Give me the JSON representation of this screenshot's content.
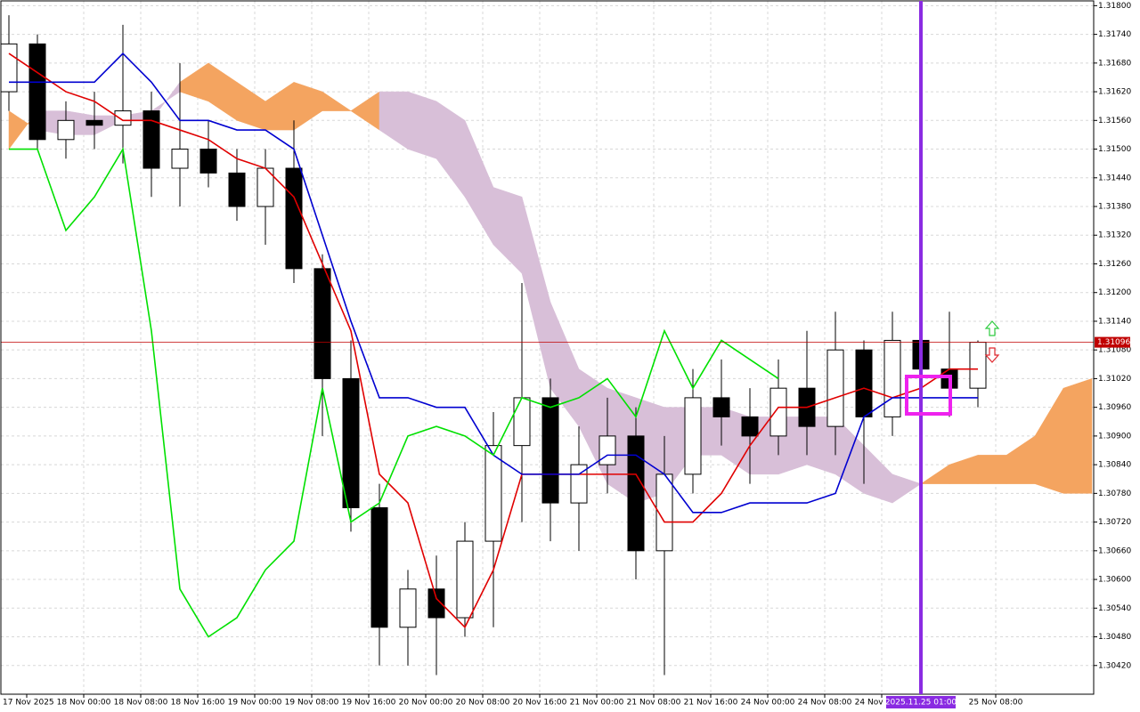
{
  "chart_data": {
    "type": "candlestick",
    "ylim": [
      1.3036,
      1.3181
    ],
    "yticks": [
      {
        "value": 1.318,
        "label": "1.31800"
      },
      {
        "value": 1.3174,
        "label": "1.31740"
      },
      {
        "value": 1.3168,
        "label": "1.31680"
      },
      {
        "value": 1.3162,
        "label": "1.31620"
      },
      {
        "value": 1.3156,
        "label": "1.31560"
      },
      {
        "value": 1.315,
        "label": "1.31500"
      },
      {
        "value": 1.3144,
        "label": "1.31440"
      },
      {
        "value": 1.3138,
        "label": "1.31380"
      },
      {
        "value": 1.3132,
        "label": "1.31320"
      },
      {
        "value": 1.3126,
        "label": "1.31260"
      },
      {
        "value": 1.312,
        "label": "1.31200"
      },
      {
        "value": 1.3114,
        "label": "1.31140"
      },
      {
        "value": 1.3108,
        "label": "1.31080"
      },
      {
        "value": 1.3102,
        "label": "1.31020"
      },
      {
        "value": 1.3096,
        "label": "1.30960"
      },
      {
        "value": 1.309,
        "label": "1.30900"
      },
      {
        "value": 1.3084,
        "label": "1.30840"
      },
      {
        "value": 1.3078,
        "label": "1.30780"
      },
      {
        "value": 1.3072,
        "label": "1.30720"
      },
      {
        "value": 1.3066,
        "label": "1.30660"
      },
      {
        "value": 1.306,
        "label": "1.30600"
      },
      {
        "value": 1.3054,
        "label": "1.30540"
      },
      {
        "value": 1.3048,
        "label": "1.30480"
      },
      {
        "value": 1.3042,
        "label": "1.30420"
      }
    ],
    "grid": true,
    "xlabels": [
      "17 Nov 2025",
      "18 Nov 00:00",
      "18 Nov 08:00",
      "18 Nov 16:00",
      "19 Nov 00:00",
      "19 Nov 08:00",
      "19 Nov 16:00",
      "20 Nov 00:00",
      "20 Nov 08:00",
      "20 Nov 16:00",
      "21 Nov 00:00",
      "21 Nov 08:00",
      "21 Nov 16:00",
      "24 Nov 00:00",
      "24 Nov 08:00",
      "24 Nov 16:00",
      null,
      "25 Nov 08:00"
    ],
    "up_color": "#ffffff",
    "down_color": "#000000",
    "open": [
      1.3162,
      1.3172,
      1.3152,
      1.3156,
      1.3155,
      1.3158,
      1.3146,
      1.315,
      1.3145,
      1.3138,
      1.3146,
      1.3125,
      1.3102,
      1.3075,
      1.305,
      1.3058,
      1.3052,
      1.3068,
      1.3088,
      1.3098,
      1.3076,
      1.3084,
      1.309,
      1.3066,
      1.3082,
      1.3098,
      1.3094,
      1.309,
      1.31,
      1.3092,
      1.3108,
      1.3094,
      1.311,
      1.3104,
      1.31
    ],
    "high": [
      1.3178,
      1.3174,
      1.316,
      1.3162,
      1.3176,
      1.3162,
      1.3168,
      1.3156,
      1.315,
      1.315,
      1.3156,
      1.3128,
      1.311,
      1.308,
      1.3062,
      1.3065,
      1.3072,
      1.3095,
      1.3122,
      1.3102,
      1.3092,
      1.3098,
      1.3096,
      1.309,
      1.3104,
      1.3106,
      1.31,
      1.3106,
      1.3112,
      1.3116,
      1.311,
      1.3116,
      1.3114,
      1.3116,
      1.311
    ],
    "low": [
      1.3158,
      1.315,
      1.3148,
      1.315,
      1.3147,
      1.314,
      1.3138,
      1.3142,
      1.3135,
      1.313,
      1.3122,
      1.309,
      1.307,
      1.3042,
      1.3042,
      1.304,
      1.3048,
      1.305,
      1.3072,
      1.3068,
      1.3066,
      1.3078,
      1.306,
      1.304,
      1.3078,
      1.3088,
      1.308,
      1.3086,
      1.3086,
      1.3086,
      1.308,
      1.309,
      1.31,
      1.3094,
      1.3096
    ],
    "close": [
      1.3172,
      1.3152,
      1.3156,
      1.3155,
      1.3158,
      1.3146,
      1.315,
      1.3145,
      1.3138,
      1.3146,
      1.3125,
      1.3102,
      1.3075,
      1.305,
      1.3058,
      1.3052,
      1.3068,
      1.3088,
      1.3098,
      1.3076,
      1.3084,
      1.309,
      1.3066,
      1.3082,
      1.3098,
      1.3094,
      1.309,
      1.31,
      1.3092,
      1.3108,
      1.3094,
      1.311,
      1.3104,
      1.31,
      1.31096
    ],
    "series": [
      {
        "color": "#e00000",
        "values": [
          1.317,
          1.3166,
          1.3162,
          1.316,
          1.3156,
          1.3156,
          1.3154,
          1.3152,
          1.3148,
          1.3146,
          1.314,
          1.3126,
          1.3112,
          1.3082,
          1.3076,
          1.3056,
          1.305,
          1.3062,
          1.3082,
          1.3082,
          1.3082,
          1.3082,
          1.3082,
          1.3072,
          1.3072,
          1.3078,
          1.3088,
          1.3096,
          1.3096,
          1.3098,
          1.31,
          1.3098,
          1.31,
          1.3104,
          1.3104
        ]
      },
      {
        "color": "#0000d0",
        "values": [
          1.3164,
          1.3164,
          1.3164,
          1.3164,
          1.317,
          1.3164,
          1.3156,
          1.3156,
          1.3154,
          1.3154,
          1.315,
          1.3132,
          1.3114,
          1.3098,
          1.3098,
          1.3096,
          1.3096,
          1.3086,
          1.3082,
          1.3082,
          1.3082,
          1.3086,
          1.3086,
          1.3082,
          1.3074,
          1.3074,
          1.3076,
          1.3076,
          1.3076,
          1.3078,
          1.3094,
          1.3098,
          1.3098,
          1.3098,
          1.3098
        ]
      },
      {
        "color": "#00e000",
        "values": [
          1.315,
          1.315,
          1.3133,
          1.314,
          1.315,
          1.3112,
          1.3058,
          1.3048,
          1.3052,
          1.3062,
          1.3068,
          1.31,
          1.3072,
          1.3076,
          1.309,
          1.3092,
          1.309,
          1.3086,
          1.3098,
          1.3096,
          1.3098,
          1.3102,
          1.3094,
          1.3112,
          1.31,
          1.311,
          1.3106,
          1.3102,
          null,
          null,
          null,
          null,
          null,
          null,
          null
        ]
      }
    ],
    "cloud": {
      "span_a": {
        "color": "#f4a460",
        "values": [
          1.3158,
          1.3154,
          1.3153,
          1.3153,
          1.3156,
          1.3156,
          1.3164,
          1.3168,
          1.3164,
          1.316,
          1.3164,
          1.3162,
          1.3158,
          1.3154,
          1.315,
          1.3148,
          1.314,
          1.313,
          1.3124,
          1.31,
          1.3092,
          1.308,
          1.3076,
          1.3078,
          1.3086,
          1.3086,
          1.3082,
          1.3082,
          1.3084,
          1.3082,
          1.3078,
          1.3076,
          1.308,
          1.3084,
          1.3086,
          1.3086,
          1.309,
          1.31,
          1.3102
        ]
      },
      "span_b": {
        "color": "#d8bfd8",
        "values": [
          1.315,
          1.3158,
          1.3158,
          1.3157,
          1.3157,
          1.3158,
          1.3162,
          1.316,
          1.3156,
          1.3154,
          1.3154,
          1.3158,
          1.3158,
          1.3162,
          1.3162,
          1.316,
          1.3156,
          1.3142,
          1.314,
          1.3118,
          1.3104,
          1.31,
          1.3098,
          1.3096,
          1.3096,
          1.3096,
          1.3094,
          1.3094,
          1.3094,
          1.3094,
          1.3088,
          1.3082,
          1.308,
          1.308,
          1.308,
          1.308,
          1.308,
          1.3078,
          1.3078
        ]
      }
    },
    "current_price": {
      "value": 1.31096,
      "label": "1.31096"
    },
    "cursor_label": "2025.11.25 01:00"
  }
}
